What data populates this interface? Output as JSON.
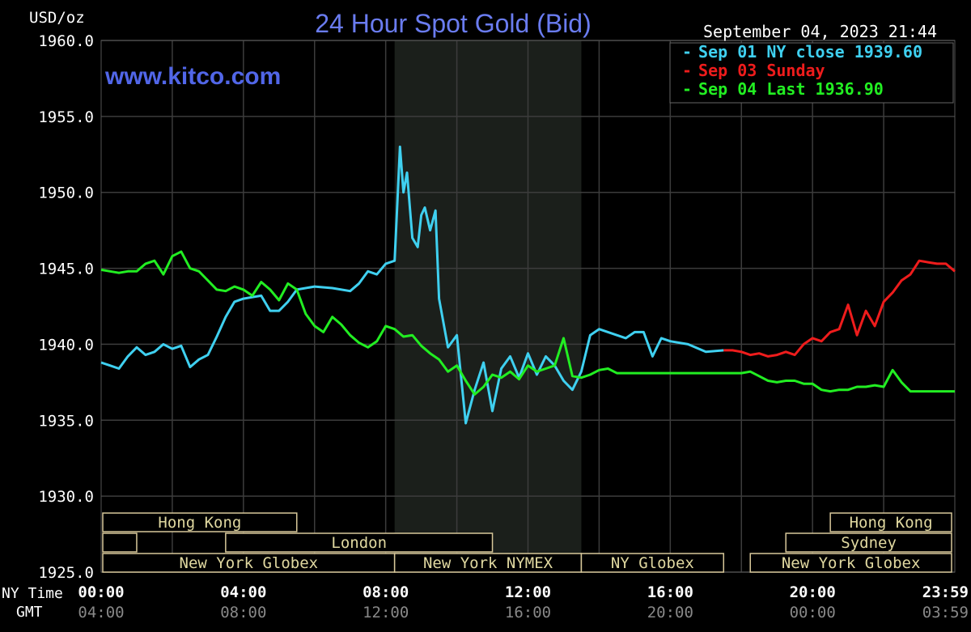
{
  "chart_data": {
    "type": "line",
    "title": "24 Hour Spot Gold (Bid)",
    "watermark": "www.kitco.com",
    "ylabel": "USD/oz",
    "timestamp": "September 04, 2023 21:44",
    "ylim": [
      1925,
      1960
    ],
    "xlim": [
      0,
      24
    ],
    "y_ticks": [
      "1960.0",
      "1955.0",
      "1950.0",
      "1945.0",
      "1940.0",
      "1935.0",
      "1930.0",
      "1925.0"
    ],
    "y_tick_values": [
      1960,
      1955,
      1950,
      1945,
      1940,
      1935,
      1930,
      1925
    ],
    "x_row_labels": [
      "NY Time",
      "GMT"
    ],
    "x_ticks_ny": [
      "00:00",
      "04:00",
      "08:00",
      "12:00",
      "16:00",
      "20:00",
      "23:59"
    ],
    "x_ticks_gmt": [
      "04:00",
      "08:00",
      "12:00",
      "16:00",
      "20:00",
      "00:00",
      "03:59"
    ],
    "x_tick_hours": [
      0,
      4,
      8,
      12,
      16,
      20,
      23.98
    ],
    "grid_hours": [
      2,
      4,
      6,
      8,
      10,
      12,
      14,
      16,
      18,
      20,
      22
    ],
    "grid": true,
    "shaded_region_hours": [
      8.25,
      13.5
    ],
    "legend_position": "top-right",
    "sessions": [
      {
        "label": "Hong Kong",
        "start": 0,
        "end": 5.5,
        "row": 0
      },
      {
        "label": "",
        "start": 0,
        "end": 1,
        "row": 1
      },
      {
        "label": "London",
        "start": 3.5,
        "end": 11,
        "row": 1
      },
      {
        "label": "New York Globex",
        "start": 0,
        "end": 8.25,
        "row": 2
      },
      {
        "label": "New York NYMEX",
        "start": 8.25,
        "end": 13.5,
        "row": 2
      },
      {
        "label": "NY Globex",
        "start": 13.5,
        "end": 17.5,
        "row": 2
      },
      {
        "label": "Hong Kong",
        "start": 20.5,
        "end": 24,
        "row": 0
      },
      {
        "label": "Sydney",
        "start": 19.25,
        "end": 24,
        "row": 1
      },
      {
        "label": "New York Globex",
        "start": 18.25,
        "end": 24,
        "row": 2
      }
    ],
    "series": [
      {
        "name": "Sep 01 NY close 1939.60",
        "color": "#3fd0f0",
        "x": [
          0,
          0.25,
          0.5,
          0.75,
          1.0,
          1.25,
          1.5,
          1.75,
          2.0,
          2.25,
          2.5,
          2.75,
          3.0,
          3.25,
          3.5,
          3.75,
          4.0,
          4.25,
          4.5,
          4.75,
          5.0,
          5.25,
          5.5,
          6.0,
          6.5,
          7.0,
          7.25,
          7.5,
          7.75,
          8.0,
          8.25,
          8.4,
          8.5,
          8.6,
          8.75,
          8.9,
          9.0,
          9.1,
          9.25,
          9.4,
          9.5,
          9.75,
          10.0,
          10.25,
          10.5,
          10.75,
          11.0,
          11.25,
          11.5,
          11.75,
          12.0,
          12.25,
          12.5,
          12.75,
          13.0,
          13.25,
          13.5,
          13.75,
          14.0,
          14.25,
          14.5,
          14.75,
          15.0,
          15.25,
          15.5,
          15.75,
          16.0,
          16.5,
          17.0,
          17.5
        ],
        "values": [
          1938.8,
          1938.6,
          1938.4,
          1939.2,
          1939.8,
          1939.3,
          1939.5,
          1940.0,
          1939.7,
          1939.9,
          1938.5,
          1939.0,
          1939.3,
          1940.5,
          1941.8,
          1942.8,
          1943.0,
          1943.1,
          1943.2,
          1942.2,
          1942.2,
          1942.8,
          1943.6,
          1943.8,
          1943.7,
          1943.5,
          1944.0,
          1944.8,
          1944.6,
          1945.3,
          1945.5,
          1953.0,
          1950.0,
          1951.3,
          1947.0,
          1946.4,
          1948.5,
          1949.0,
          1947.5,
          1948.8,
          1943.0,
          1939.8,
          1940.6,
          1934.8,
          1937.0,
          1938.8,
          1935.6,
          1938.4,
          1939.2,
          1937.8,
          1939.4,
          1938.0,
          1939.2,
          1938.6,
          1937.6,
          1937.0,
          1938.2,
          1940.6,
          1941.0,
          1940.8,
          1940.6,
          1940.4,
          1940.8,
          1940.8,
          1939.2,
          1940.4,
          1940.2,
          1940.0,
          1939.5,
          1939.6
        ]
      },
      {
        "name": "Sep 03 Sunday",
        "color": "#ee1c1c",
        "x": [
          17.5,
          17.75,
          18.0,
          18.25,
          18.5,
          18.75,
          19.0,
          19.25,
          19.5,
          19.75,
          20.0,
          20.25,
          20.5,
          20.75,
          21.0,
          21.25,
          21.5,
          21.75,
          22.0,
          22.25,
          22.5,
          22.75,
          23.0,
          23.25,
          23.5,
          23.75,
          24.0
        ],
        "values": [
          1939.6,
          1939.6,
          1939.5,
          1939.3,
          1939.4,
          1939.2,
          1939.3,
          1939.5,
          1939.3,
          1940.0,
          1940.4,
          1940.2,
          1940.8,
          1941.0,
          1942.6,
          1940.6,
          1942.2,
          1941.2,
          1942.8,
          1943.4,
          1944.2,
          1944.6,
          1945.5,
          1945.4,
          1945.3,
          1945.3,
          1944.8
        ]
      },
      {
        "name": "Sep 04 Last 1936.90",
        "color": "#22ee22",
        "x": [
          0,
          0.25,
          0.5,
          0.75,
          1.0,
          1.25,
          1.5,
          1.75,
          2.0,
          2.25,
          2.5,
          2.75,
          3.0,
          3.25,
          3.5,
          3.75,
          4.0,
          4.25,
          4.5,
          4.75,
          5.0,
          5.25,
          5.5,
          5.75,
          6.0,
          6.25,
          6.5,
          6.75,
          7.0,
          7.25,
          7.5,
          7.75,
          8.0,
          8.25,
          8.5,
          8.75,
          9.0,
          9.25,
          9.5,
          9.75,
          10.0,
          10.25,
          10.5,
          10.75,
          11.0,
          11.25,
          11.5,
          11.75,
          12.0,
          12.25,
          12.5,
          12.75,
          13.0,
          13.25,
          13.5,
          13.75,
          14.0,
          14.25,
          14.5,
          15.0,
          16.0,
          17.0,
          18.0,
          18.25,
          18.5,
          18.75,
          19.0,
          19.25,
          19.5,
          19.75,
          20.0,
          20.25,
          20.5,
          20.75,
          21.0,
          21.25,
          21.5,
          21.75,
          22.0,
          22.25,
          22.5,
          22.75,
          23.0,
          23.25,
          23.5,
          23.75,
          24.0
        ],
        "values": [
          1944.9,
          1944.8,
          1944.7,
          1944.8,
          1944.8,
          1945.3,
          1945.5,
          1944.6,
          1945.8,
          1946.1,
          1945.0,
          1944.8,
          1944.2,
          1943.6,
          1943.5,
          1943.8,
          1943.6,
          1943.2,
          1944.1,
          1943.6,
          1942.9,
          1944.0,
          1943.6,
          1942.0,
          1941.2,
          1940.8,
          1941.8,
          1941.3,
          1940.6,
          1940.1,
          1939.8,
          1940.2,
          1941.2,
          1941.0,
          1940.5,
          1940.6,
          1939.9,
          1939.4,
          1939.0,
          1938.2,
          1938.6,
          1937.6,
          1936.7,
          1937.2,
          1938.0,
          1937.8,
          1938.2,
          1937.7,
          1938.6,
          1938.2,
          1938.4,
          1938.6,
          1940.4,
          1937.9,
          1937.8,
          1938.0,
          1938.3,
          1938.4,
          1938.1,
          1938.1,
          1938.1,
          1938.1,
          1938.1,
          1938.2,
          1937.9,
          1937.6,
          1937.5,
          1937.6,
          1937.6,
          1937.4,
          1937.4,
          1937.0,
          1936.9,
          1937.0,
          1937.0,
          1937.2,
          1937.2,
          1937.3,
          1937.2,
          1938.3,
          1937.5,
          1936.9,
          1936.9,
          1936.9,
          1936.9,
          1936.9,
          1936.9
        ]
      }
    ]
  }
}
